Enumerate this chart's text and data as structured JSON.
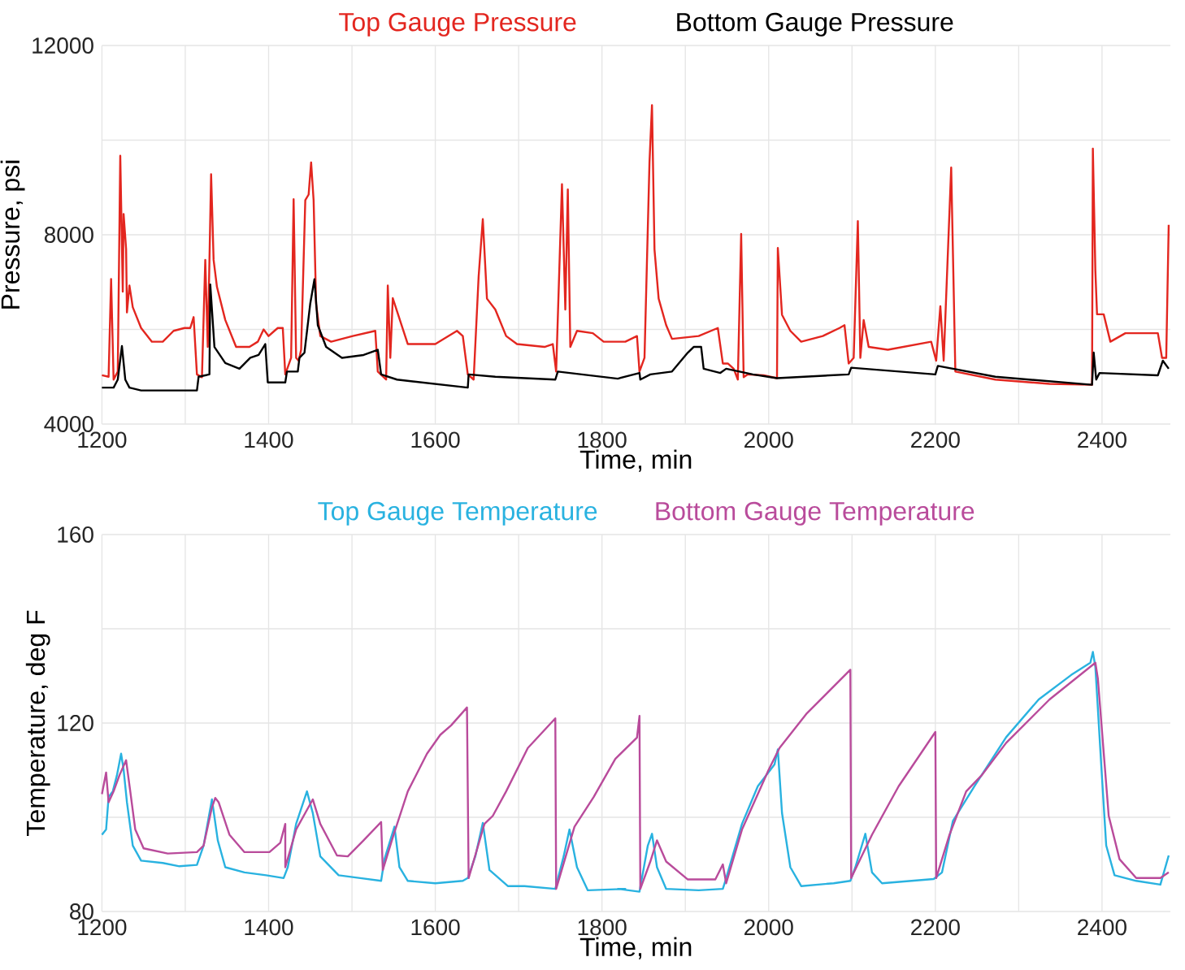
{
  "chart_data": [
    {
      "type": "line",
      "xlabel": "Time, min",
      "ylabel": "Pressure, psi",
      "legend": "top",
      "grid": true,
      "marker": "none",
      "line_style": "solid",
      "xlim": [
        1200,
        2482
      ],
      "ylim": [
        4000,
        12000
      ],
      "xticks": [
        1200,
        {
          "value": 1300,
          "label": null
        },
        1400,
        {
          "value": 1500,
          "label": null
        },
        1600,
        {
          "value": 1700,
          "label": null
        },
        1800,
        {
          "value": 1900,
          "label": null
        },
        2000,
        {
          "value": 2100,
          "label": null
        },
        2200,
        {
          "value": 2300,
          "label": null
        },
        2400
      ],
      "yticks": [
        4000,
        {
          "value": 6000,
          "label": null
        },
        8000,
        {
          "value": 10000,
          "label": null
        },
        12000
      ],
      "series": [
        {
          "name": "Top Gauge Pressure",
          "color": "#e3261f",
          "x": [
            1200,
            1208,
            1211,
            1214,
            1219,
            1222,
            1225,
            1226,
            1229,
            1230,
            1233,
            1237,
            1247,
            1260,
            1273,
            1286,
            1299,
            1306,
            1310,
            1314,
            1320,
            1324,
            1327,
            1331,
            1334,
            1338,
            1348,
            1361,
            1377,
            1387,
            1394,
            1400,
            1407,
            1411,
            1417,
            1420,
            1427,
            1430,
            1433,
            1436,
            1439,
            1444,
            1448,
            1451,
            1454,
            1457,
            1462,
            1475,
            1501,
            1528,
            1531,
            1541,
            1543,
            1546,
            1549,
            1567,
            1600,
            1626,
            1633,
            1639,
            1646,
            1652,
            1657,
            1662,
            1672,
            1685,
            1698,
            1731,
            1741,
            1745,
            1752,
            1756,
            1759,
            1762,
            1770,
            1789,
            1802,
            1828,
            1842,
            1845,
            1851,
            1857,
            1860,
            1863,
            1868,
            1877,
            1884,
            1916,
            1939,
            1945,
            1951,
            1958,
            1963,
            1967,
            1970,
            1975,
            1994,
            2010,
            2011,
            2016,
            2026,
            2039,
            2065,
            2085,
            2091,
            2096,
            2102,
            2107,
            2110,
            2114,
            2120,
            2143,
            2195,
            2201,
            2206,
            2210,
            2219,
            2224,
            2272,
            2337,
            2388,
            2389,
            2392,
            2394,
            2402,
            2410,
            2428,
            2467,
            2472,
            2477,
            2480
          ],
          "values": [
            5032,
            5000,
            7064,
            4940,
            5110,
            9670,
            6800,
            8440,
            7700,
            6360,
            6930,
            6470,
            6030,
            5740,
            5740,
            5970,
            6030,
            6030,
            6260,
            5050,
            4990,
            7470,
            5630,
            9280,
            7470,
            6900,
            6200,
            5630,
            5630,
            5740,
            6000,
            5860,
            5970,
            6030,
            6030,
            5050,
            5400,
            8750,
            5400,
            5340,
            5570,
            8730,
            8850,
            9530,
            8730,
            6540,
            5860,
            5740,
            5860,
            5970,
            5110,
            4940,
            6926,
            5400,
            6660,
            5690,
            5690,
            5970,
            5860,
            5050,
            4940,
            7120,
            8330,
            6650,
            6420,
            5860,
            5690,
            5630,
            5690,
            5110,
            9070,
            6420,
            8960,
            5630,
            5970,
            5920,
            5740,
            5740,
            5860,
            5110,
            5400,
            9530,
            10740,
            7690,
            6650,
            6090,
            5800,
            5860,
            6030,
            5280,
            5280,
            5170,
            4940,
            8020,
            4990,
            5050,
            5030,
            4970,
            7720,
            6310,
            5970,
            5740,
            5860,
            6030,
            6090,
            5280,
            5400,
            8290,
            5400,
            6200,
            5630,
            5570,
            5740,
            5340,
            6490,
            5340,
            9420,
            5110,
            4940,
            4850,
            4830,
            9820,
            7240,
            6320,
            6320,
            5740,
            5920,
            5920,
            5400,
            5400,
            8210
          ]
        },
        {
          "name": "Bottom Gauge Pressure",
          "color": "#000000",
          "x": [
            1200,
            1214,
            1219,
            1224,
            1228,
            1233,
            1247,
            1314,
            1316,
            1329,
            1330,
            1335,
            1348,
            1365,
            1378,
            1388,
            1396,
            1399,
            1420,
            1422,
            1435,
            1437,
            1443,
            1450,
            1455,
            1459,
            1469,
            1488,
            1514,
            1531,
            1535,
            1554,
            1639,
            1640,
            1672,
            1744,
            1747,
            1819,
            1845,
            1846,
            1858,
            1884,
            1903,
            1910,
            1919,
            1922,
            1942,
            1949,
            1981,
            2010,
            2096,
            2099,
            2200,
            2203,
            2272,
            2388,
            2390,
            2393,
            2397,
            2467,
            2473,
            2480
          ],
          "values": [
            4770,
            4770,
            4940,
            5650,
            4940,
            4770,
            4710,
            4710,
            5000,
            5050,
            6950,
            5630,
            5290,
            5170,
            5400,
            5460,
            5690,
            4880,
            4880,
            5110,
            5110,
            5400,
            5510,
            6550,
            7060,
            6090,
            5630,
            5400,
            5460,
            5570,
            5050,
            4940,
            4770,
            5050,
            5000,
            4940,
            5110,
            4960,
            5080,
            4940,
            5050,
            5110,
            5510,
            5630,
            5630,
            5170,
            5080,
            5170,
            5050,
            4970,
            5050,
            5190,
            5050,
            5230,
            5000,
            4830,
            5510,
            4940,
            5080,
            5030,
            5340,
            5170
          ]
        }
      ]
    },
    {
      "type": "line",
      "xlabel": "Time, min",
      "ylabel": "Temperature, deg F",
      "legend": "top",
      "grid": true,
      "marker": "none",
      "line_style": "solid",
      "xlim": [
        1200,
        2482
      ],
      "ylim": [
        80,
        160
      ],
      "xticks": [
        1200,
        {
          "value": 1300,
          "label": null
        },
        1400,
        {
          "value": 1500,
          "label": null
        },
        1600,
        {
          "value": 1700,
          "label": null
        },
        1800,
        {
          "value": 1900,
          "label": null
        },
        2000,
        {
          "value": 2100,
          "label": null
        },
        2200,
        {
          "value": 2300,
          "label": null
        },
        2400
      ],
      "yticks": [
        80,
        {
          "value": 100,
          "label": null
        },
        120,
        {
          "value": 140,
          "label": null
        },
        160
      ],
      "series": [
        {
          "name": "Top Gauge Temperature",
          "color": "#29b2e0",
          "x": [
            1200,
            1205,
            1208,
            1213,
            1218,
            1223,
            1226,
            1230,
            1237,
            1247,
            1273,
            1293,
            1314,
            1322,
            1332,
            1339,
            1348,
            1371,
            1397,
            1418,
            1423,
            1433,
            1446,
            1453,
            1462,
            1484,
            1510,
            1535,
            1539,
            1551,
            1557,
            1567,
            1600,
            1633,
            1639,
            1648,
            1657,
            1665,
            1687,
            1707,
            1744,
            1754,
            1761,
            1770,
            1783,
            1828,
            1819,
            1845,
            1855,
            1860,
            1866,
            1877,
            1916,
            1945,
            1948,
            1968,
            1987,
            2007,
            2011,
            2016,
            2026,
            2039,
            2078,
            2098,
            2104,
            2116,
            2124,
            2136,
            2198,
            2208,
            2221,
            2247,
            2285,
            2324,
            2363,
            2386,
            2389,
            2392,
            2399,
            2405,
            2415,
            2441,
            2470,
            2480
          ],
          "values": [
            96.3,
            97.4,
            104.3,
            105.5,
            108.9,
            113.5,
            110.1,
            103.2,
            94.0,
            90.8,
            90.3,
            89.6,
            89.9,
            94.0,
            103.8,
            95.1,
            89.4,
            88.3,
            87.7,
            87.1,
            89.4,
            98.6,
            105.5,
            100.9,
            91.7,
            87.7,
            87.1,
            86.5,
            91.1,
            98.0,
            89.4,
            86.5,
            86.0,
            86.5,
            87.1,
            91.7,
            98.8,
            88.8,
            85.4,
            85.4,
            84.8,
            91.7,
            97.4,
            89.4,
            84.5,
            84.8,
            84.8,
            84.2,
            94.0,
            96.5,
            89.4,
            84.8,
            84.5,
            84.8,
            86.5,
            98.6,
            106.6,
            111.2,
            114.4,
            100.9,
            89.4,
            85.4,
            86.0,
            86.5,
            89.4,
            96.5,
            88.3,
            86.0,
            86.9,
            88.3,
            99.2,
            106.6,
            117.0,
            125.0,
            130.2,
            132.8,
            135.1,
            131.9,
            111.2,
            94.0,
            87.7,
            86.5,
            85.7,
            91.9
          ]
        },
        {
          "name": "Bottom Gauge Temperature",
          "color": "#b94b9b",
          "x": [
            1200,
            1205,
            1208,
            1214,
            1221,
            1229,
            1234,
            1240,
            1250,
            1279,
            1314,
            1322,
            1332,
            1336,
            1340,
            1353,
            1371,
            1401,
            1414,
            1420,
            1420,
            1433,
            1453,
            1462,
            1482,
            1495,
            1514,
            1535,
            1537,
            1550,
            1567,
            1590,
            1606,
            1619,
            1638,
            1640,
            1659,
            1669,
            1685,
            1711,
            1744,
            1745,
            1767,
            1790,
            1816,
            1842,
            1845,
            1846,
            1858,
            1866,
            1877,
            1903,
            1936,
            1945,
            1949,
            1968,
            2000,
            2013,
            2046,
            2098,
            2099,
            2124,
            2156,
            2200,
            2201,
            2217,
            2237,
            2256,
            2285,
            2337,
            2392,
            2395,
            2408,
            2421,
            2441,
            2470,
            2480
          ],
          "values": [
            104.9,
            109.5,
            103.2,
            105.5,
            108.9,
            112.1,
            105.5,
            97.4,
            93.4,
            92.3,
            92.6,
            94.0,
            102.1,
            104.1,
            103.2,
            96.3,
            92.6,
            92.6,
            94.6,
            98.6,
            89.4,
            97.4,
            103.8,
            98.6,
            91.9,
            91.7,
            95.1,
            99.0,
            88.8,
            96.3,
            105.5,
            113.5,
            117.5,
            119.5,
            123.3,
            87.1,
            98.6,
            100.3,
            105.5,
            114.7,
            121.0,
            84.8,
            98.0,
            104.3,
            112.4,
            116.9,
            121.5,
            84.8,
            90.6,
            95.1,
            90.6,
            86.8,
            86.8,
            90.0,
            86.0,
            97.4,
            110.1,
            114.7,
            122.1,
            131.3,
            87.1,
            96.3,
            106.6,
            118.1,
            87.1,
            96.3,
            105.5,
            109.0,
            115.8,
            125.0,
            132.8,
            129.4,
            100.3,
            91.1,
            87.1,
            87.1,
            88.3
          ]
        }
      ]
    }
  ]
}
